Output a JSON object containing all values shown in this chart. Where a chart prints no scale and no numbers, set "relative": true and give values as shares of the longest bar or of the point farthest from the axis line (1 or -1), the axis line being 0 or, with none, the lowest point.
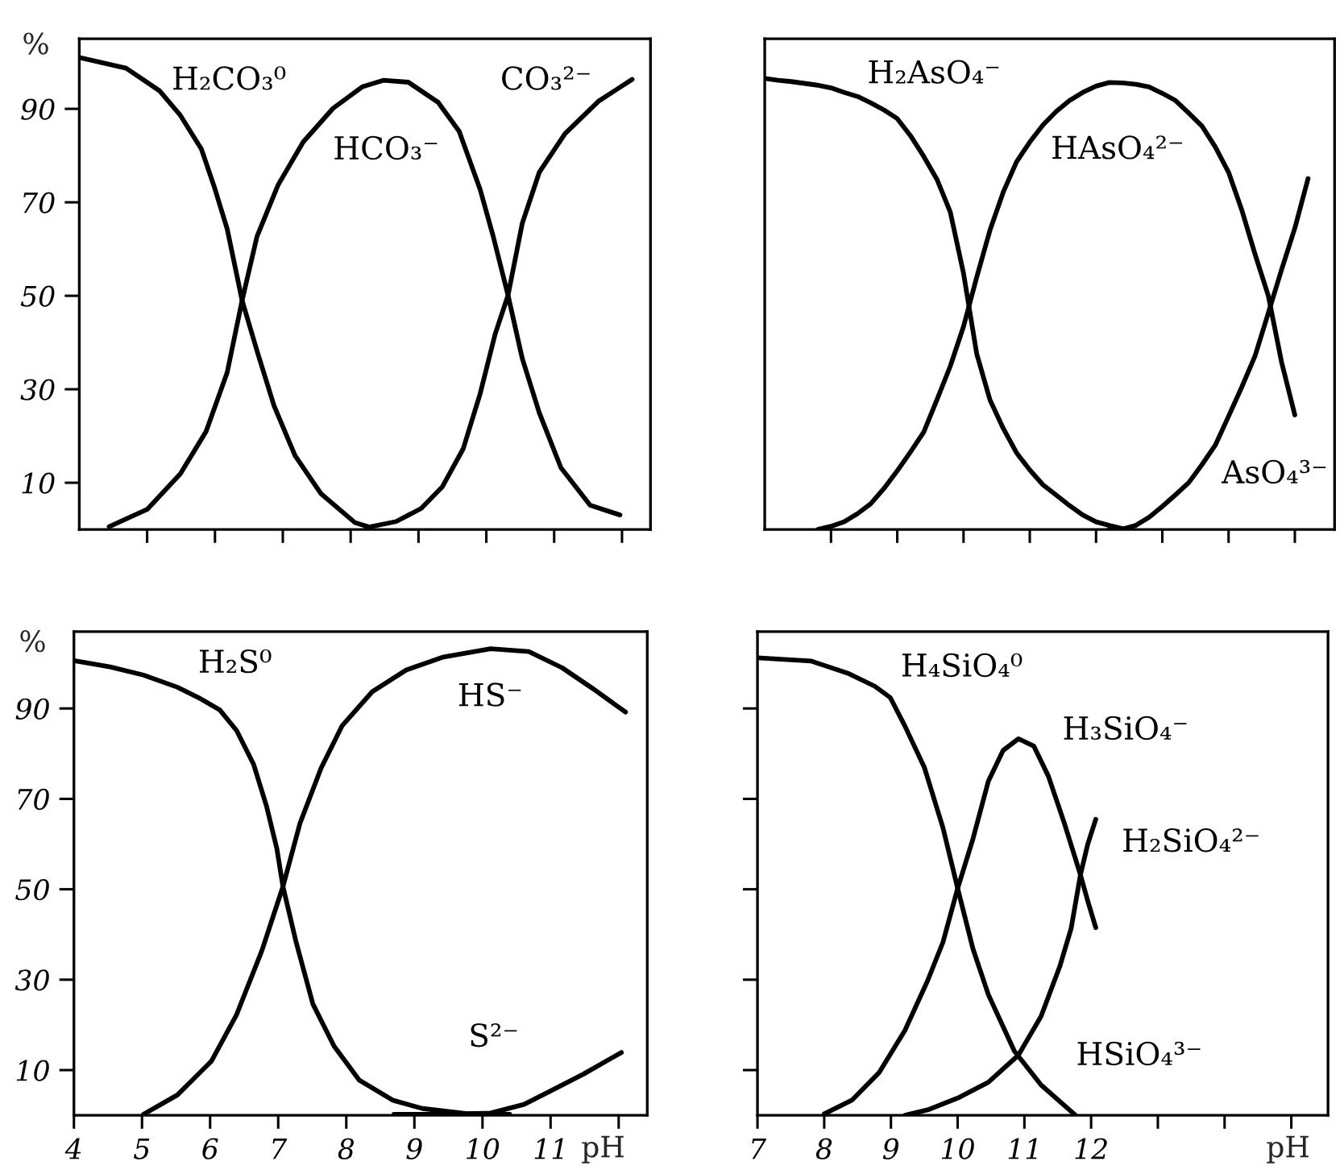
{
  "chart_data": [
    {
      "type": "line",
      "ylabel": "%",
      "xlim": [
        4,
        12.42
      ],
      "xticks": [
        {
          "value": 5,
          "label": null
        },
        {
          "value": 6,
          "label": null
        },
        {
          "value": 7,
          "label": null
        },
        {
          "value": 8,
          "label": null
        },
        {
          "value": 9,
          "label": null
        },
        {
          "value": 10,
          "label": null
        },
        {
          "value": 11,
          "label": null
        }
      ],
      "ylim": [
        0,
        105
      ],
      "yticks": [
        10,
        30,
        50,
        70,
        90
      ],
      "tick_labels": "y",
      "series": [
        {
          "name": "H₂CO₃⁰",
          "color": "#000000",
          "x": [
            4.0,
            4.69,
            5.18,
            5.49,
            5.8,
            5.99,
            6.18,
            6.4,
            6.62,
            6.87,
            7.18,
            7.56,
            8.06,
            8.3
          ],
          "values": [
            101,
            98.7,
            93.9,
            88.6,
            81.4,
            73.3,
            64.3,
            49,
            38.2,
            26.5,
            15.8,
            7.7,
            1.5,
            0.4
          ]
        },
        {
          "name": "HCO₃⁻",
          "color": "#000000",
          "x": [
            4.44,
            5.0,
            5.49,
            5.87,
            6.18,
            6.4,
            6.62,
            6.93,
            7.3,
            7.74,
            8.17,
            8.48,
            8.85,
            9.29,
            9.6,
            9.91,
            10.1,
            10.32,
            10.53,
            10.78,
            11.1,
            11.53,
            11.97
          ],
          "values": [
            0.6,
            4.3,
            11.9,
            21,
            33.6,
            49,
            62.7,
            73.7,
            82.9,
            90.1,
            94.7,
            96.1,
            95.7,
            91.4,
            85.2,
            72.7,
            62.8,
            50.1,
            36.6,
            25,
            13.2,
            5.2,
            3.1
          ]
        },
        {
          "name": "CO₃²⁻",
          "color": "#000000",
          "x": [
            8.23,
            8.67,
            9.04,
            9.35,
            9.66,
            9.91,
            10.13,
            10.32,
            10.53,
            10.78,
            11.16,
            11.66,
            12.15
          ],
          "values": [
            0.4,
            1.7,
            4.5,
            9.1,
            17.3,
            29.1,
            41.8,
            50.1,
            65.5,
            76.4,
            84.7,
            91.7,
            96.3
          ]
        }
      ]
    },
    {
      "type": "line",
      "relative": true,
      "categories": [
        null,
        null,
        null,
        null,
        null,
        null,
        null,
        null,
        null,
        null,
        null,
        null,
        null,
        null,
        null,
        null,
        null,
        null,
        null,
        null,
        null,
        null,
        null,
        null,
        null,
        null,
        null,
        null,
        null,
        null,
        null,
        null,
        null,
        null,
        null,
        null,
        null,
        null,
        null,
        null,
        null,
        null,
        null,
        null
      ],
      "series": [
        {
          "name": "H₂AsO₄⁻",
          "color": "#000000",
          "values": [
            1,
            0.996,
            0.993,
            0.989,
            0.985,
            0.979,
            0.969,
            0.96,
            0.946,
            0.93,
            0.911,
            0.873,
            0.827,
            0.776,
            0.704,
            0.568,
            0.389,
            0.287,
            0.224,
            0.17,
            0.132,
            0.099,
            0.076,
            0.053,
            0.032,
            0.017,
            0.009,
            0.002,
            null,
            null,
            null,
            null,
            null,
            null,
            null,
            null,
            null,
            null,
            null,
            null,
            null,
            null,
            null,
            null
          ]
        },
        {
          "name": "HAsO₄²⁻",
          "color": "#000000",
          "values": [
            null,
            null,
            null,
            null,
            0,
            0.007,
            0.017,
            0.035,
            0.057,
            0.091,
            0.13,
            0.172,
            0.216,
            0.288,
            0.362,
            0.45,
            0.56,
            0.664,
            0.748,
            0.815,
            0.859,
            0.897,
            0.927,
            0.951,
            0.969,
            0.983,
            0.991,
            0.99,
            0.987,
            0.981,
            0.967,
            0.951,
            0.923,
            0.894,
            0.848,
            0.792,
            0.708,
            0.61,
            0.518,
            0.371,
            0.254,
            null,
            null,
            null
          ]
        },
        {
          "name": "AsO₄³⁻",
          "color": "#000000",
          "values": [
            null,
            null,
            null,
            null,
            null,
            null,
            null,
            null,
            null,
            null,
            null,
            null,
            null,
            null,
            null,
            null,
            null,
            null,
            null,
            null,
            null,
            null,
            null,
            null,
            null,
            null,
            0,
            0.001,
            0.009,
            0.027,
            0.051,
            0.077,
            0.104,
            0.144,
            0.187,
            0.251,
            0.316,
            0.385,
            0.48,
            0.576,
            0.668,
            0.778,
            null,
            null
          ]
        }
      ]
    },
    {
      "type": "line",
      "ylabel": "%",
      "xlabel": "pH",
      "xlim": [
        4,
        12.42
      ],
      "xticks": [
        4,
        5,
        6,
        7,
        8,
        9,
        10,
        11
      ],
      "ylim": [
        0,
        107
      ],
      "yticks": [
        10,
        30,
        50,
        70,
        90
      ],
      "series": [
        {
          "name": "H₂S⁰",
          "color": "#000000",
          "x": [
            4.0,
            4.53,
            5.02,
            5.52,
            5.83,
            6.14,
            6.39,
            6.64,
            6.83,
            6.98,
            7.07,
            7.26,
            7.51,
            7.82,
            8.19,
            8.69,
            9.12,
            9.75,
            10.4
          ],
          "values": [
            100.6,
            99.2,
            97.4,
            94.7,
            92.4,
            89.7,
            85.1,
            77.6,
            68.3,
            59,
            50.6,
            38.5,
            24.6,
            15.3,
            7.8,
            3.3,
            1.5,
            0.4,
            0.2
          ]
        },
        {
          "name": "HS⁻",
          "color": "#000000",
          "x": [
            5.02,
            5.52,
            6.02,
            6.39,
            6.76,
            7.07,
            7.32,
            7.63,
            7.94,
            8.38,
            8.88,
            9.43,
            10.12,
            10.68,
            11.17,
            11.61,
            12.1
          ],
          "values": [
            0.2,
            4.5,
            12,
            22.3,
            36.4,
            50.6,
            64.6,
            76.8,
            86.2,
            93.7,
            98.5,
            101.4,
            103.2,
            102.6,
            99,
            94.5,
            89.2
          ]
        },
        {
          "name": "S²⁻",
          "color": "#000000",
          "x": [
            8.7,
            9.5,
            10.12,
            10.61,
            10.99,
            11.48,
            12.04
          ],
          "values": [
            0.2,
            0.2,
            0.5,
            2.4,
            5.3,
            9.1,
            13.9
          ]
        }
      ]
    },
    {
      "type": "line",
      "xlabel": "pH",
      "xlim": [
        7,
        15.55
      ],
      "xticks": [
        7,
        8,
        9,
        10,
        11,
        12
      ],
      "ylim": [
        0,
        107
      ],
      "yticks": [
        {
          "value": 10,
          "label": null
        },
        {
          "value": 30,
          "label": null
        },
        {
          "value": 50,
          "label": null
        },
        {
          "value": 70,
          "label": null
        },
        {
          "value": 90,
          "label": null
        }
      ],
      "tick_labels": "x",
      "annotations": [
        "HSiO₄³⁻"
      ],
      "series": [
        {
          "name": "H₄SiO₄⁰",
          "color": "#000000",
          "x": [
            7.0,
            7.8,
            8.37,
            8.76,
            8.99,
            9.21,
            9.5,
            9.78,
            10.0,
            10.23,
            10.46,
            10.85,
            11.25,
            11.76
          ],
          "values": [
            101.2,
            100.5,
            97.7,
            94.9,
            92.4,
            86.1,
            77,
            63.6,
            50.2,
            36.8,
            26.7,
            14.2,
            6.7,
            0.1
          ]
        },
        {
          "name": "H₃SiO₄⁻",
          "color": "#000000",
          "x": [
            8.0,
            8.42,
            8.82,
            9.21,
            9.55,
            9.78,
            10.0,
            10.23,
            10.46,
            10.68,
            10.91,
            11.14,
            11.36,
            11.59,
            11.84,
            11.95,
            12.07
          ],
          "values": [
            0.3,
            3.4,
            9.4,
            18.8,
            29.8,
            38.3,
            50.2,
            61.2,
            73.9,
            80.7,
            83.3,
            81.7,
            75,
            65,
            53.2,
            47.4,
            41.5
          ]
        },
        {
          "name": "H₂SiO₄²⁻",
          "color": "#000000",
          "x": [
            9.21,
            9.55,
            10.0,
            10.46,
            10.91,
            11.25,
            11.53,
            11.7,
            11.84,
            11.95,
            12.07
          ],
          "values": [
            0,
            1.2,
            3.8,
            7.3,
            13.3,
            21.9,
            32.9,
            41.3,
            53.2,
            60,
            65.5
          ]
        }
      ]
    }
  ]
}
